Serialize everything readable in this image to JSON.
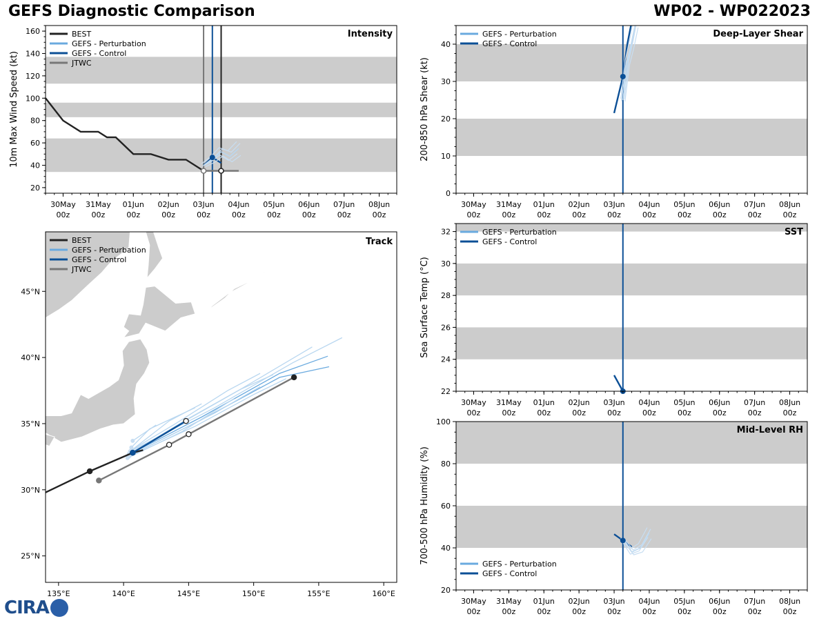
{
  "header": {
    "title_left": "GEFS Diagnostic Comparison",
    "title_right": "WP02 - WP022023"
  },
  "logo": {
    "text": "CIRA"
  },
  "colors": {
    "best": "#222222",
    "perturbation": "#6aaadf",
    "control": "#0b4f96",
    "jtwc": "#777777",
    "shade": "#cccccc",
    "land": "#cccccc"
  },
  "time_ticks": [
    [
      "30May",
      "00z"
    ],
    [
      "31May",
      "00z"
    ],
    [
      "01Jun",
      "00z"
    ],
    [
      "02Jun",
      "00z"
    ],
    [
      "03Jun",
      "00z"
    ],
    [
      "04Jun",
      "00z"
    ],
    [
      "05Jun",
      "00z"
    ],
    [
      "06Jun",
      "00z"
    ],
    [
      "07Jun",
      "00z"
    ],
    [
      "08Jun",
      "00z"
    ]
  ],
  "legend_labels": {
    "best": "BEST",
    "perturbation": "GEFS - Perturbation",
    "control": "GEFS - Control",
    "jtwc": "JTWC"
  },
  "chart_data": [
    {
      "id": "intensity",
      "type": "line",
      "title": "Intensity",
      "ylabel": "10m Max Wind Speed (kt)",
      "ylim": [
        15,
        165
      ],
      "yticks": [
        20,
        40,
        60,
        80,
        100,
        120,
        140,
        160
      ],
      "xlim_days": [
        -0.5,
        9.5
      ],
      "shaded_bands": [
        [
          34,
          64
        ],
        [
          83,
          96
        ],
        [
          113,
          137
        ]
      ],
      "vlines_days": [
        4.0,
        4.25,
        4.5
      ],
      "series": [
        {
          "name": "BEST",
          "x_days": [
            -0.5,
            0,
            0.5,
            1,
            1.25,
            1.5,
            2,
            2.5,
            3,
            3.5,
            4
          ],
          "y": [
            100,
            80,
            70,
            70,
            65,
            65,
            50,
            50,
            45,
            45,
            35
          ]
        },
        {
          "name": "JTWC",
          "x_days": [
            4.0,
            4.5,
            5.0
          ],
          "y": [
            35,
            35,
            35
          ]
        },
        {
          "name": "GEFS - Control",
          "x_days": [
            4.0,
            4.25,
            4.5
          ],
          "y": [
            40,
            47,
            42
          ]
        },
        {
          "name": "GEFS - Perturbation",
          "x_days": [
            4.0,
            4.25,
            4.5,
            4.75,
            5.0
          ],
          "y": [
            40,
            45,
            52,
            48,
            55
          ]
        }
      ]
    },
    {
      "id": "shear",
      "type": "line",
      "title": "Deep-Layer Shear",
      "ylabel": "200-850 hPa Shear (kt)",
      "ylim": [
        0,
        45
      ],
      "yticks": [
        0,
        10,
        20,
        30,
        40
      ],
      "xlim_days": [
        -0.5,
        9.5
      ],
      "shaded_bands": [
        [
          10,
          20
        ],
        [
          30,
          40
        ]
      ],
      "vlines_days": [
        4.25
      ],
      "series": [
        {
          "name": "GEFS - Control",
          "x_days": [
            4.0,
            4.25,
            4.375,
            4.5
          ],
          "y": [
            21.5,
            31.3,
            40,
            46
          ]
        },
        {
          "name": "GEFS - Perturbation",
          "x_days": [
            4.25,
            4.375,
            4.5,
            4.625
          ],
          "y": [
            25,
            35,
            40,
            46
          ]
        }
      ]
    },
    {
      "id": "sst",
      "type": "line",
      "title": "SST",
      "ylabel": "Sea Surface Temp (°C)",
      "ylim": [
        22,
        32.5
      ],
      "yticks": [
        22,
        24,
        26,
        28,
        30,
        32
      ],
      "xlim_days": [
        -0.5,
        9.5
      ],
      "shaded_bands": [
        [
          24,
          26
        ],
        [
          28,
          30
        ],
        [
          32,
          32.5
        ]
      ],
      "vlines_days": [
        4.25
      ],
      "series": [
        {
          "name": "GEFS - Control",
          "x_days": [
            4.0,
            4.25
          ],
          "y": [
            23.0,
            22.0
          ]
        }
      ]
    },
    {
      "id": "rh",
      "type": "line",
      "title": "Mid-Level RH",
      "ylabel": "700-500 hPa Humidity (%)",
      "ylim": [
        20,
        100
      ],
      "yticks": [
        20,
        40,
        60,
        80,
        100
      ],
      "xlim_days": [
        -0.5,
        9.5
      ],
      "shaded_bands": [
        [
          40,
          60
        ],
        [
          80,
          100
        ]
      ],
      "vlines_days": [
        4.25
      ],
      "series": [
        {
          "name": "GEFS - Control",
          "x_days": [
            4.0,
            4.25,
            4.5
          ],
          "y": [
            46.5,
            43.5,
            40.5
          ]
        },
        {
          "name": "GEFS - Perturbation",
          "x_days": [
            4.25,
            4.5,
            4.75,
            5.0
          ],
          "y": [
            44,
            38,
            40,
            47
          ]
        }
      ]
    },
    {
      "id": "track",
      "type": "scatter",
      "title": "Track",
      "xlim_lon": [
        134,
        161
      ],
      "ylim_lat": [
        23,
        49.5
      ],
      "xticks": [
        135,
        140,
        145,
        150,
        155,
        160
      ],
      "xtick_labels": [
        "135°E",
        "140°E",
        "145°E",
        "150°E",
        "155°E",
        "160°E"
      ],
      "yticks": [
        25,
        30,
        35,
        40,
        45
      ],
      "ytick_labels": [
        "25°N",
        "30°N",
        "35°N",
        "40°N",
        "45°N"
      ],
      "series": [
        {
          "name": "BEST",
          "lon": [
            134.0,
            137.4,
            140.7,
            141.5
          ],
          "lat": [
            29.8,
            31.4,
            32.8,
            33.0
          ],
          "markers": [
            [
              137.4,
              31.4
            ],
            [
              140.7,
              32.8
            ]
          ]
        },
        {
          "name": "JTWC",
          "lon": [
            138.1,
            143.5,
            145.0,
            153.1
          ],
          "lat": [
            30.7,
            33.4,
            34.2,
            38.5
          ],
          "markers": [
            [
              138.1,
              30.7
            ],
            [
              143.5,
              33.4
            ],
            [
              145.0,
              34.2
            ],
            [
              153.1,
              38.5
            ]
          ]
        },
        {
          "name": "GEFS - Control",
          "lon": [
            140.7,
            144.8
          ],
          "lat": [
            32.8,
            35.2
          ],
          "markers": [
            [
              140.7,
              32.8
            ],
            [
              144.8,
              35.2
            ]
          ]
        },
        {
          "name": "GEFS - Perturbation",
          "tracks": [
            [
              [
                140.5,
                32.7
              ],
              [
                146,
                35.5
              ],
              [
                152,
                38.8
              ],
              [
                155.7,
                40.1
              ]
            ],
            [
              [
                140.5,
                32.6
              ],
              [
                146,
                35.3
              ],
              [
                152,
                38.5
              ],
              [
                155.8,
                39.3
              ]
            ],
            [
              [
                140.5,
                32.9
              ],
              [
                147,
                36.2
              ],
              [
                153,
                39.6
              ],
              [
                156.8,
                41.5
              ]
            ],
            [
              [
                140.6,
                32.8
              ],
              [
                145,
                35.4
              ],
              [
                149,
                37.6
              ],
              [
                151.5,
                38.7
              ]
            ],
            [
              [
                140.4,
                32.5
              ],
              [
                145.5,
                34.8
              ],
              [
                150,
                37.2
              ],
              [
                152.5,
                38.4
              ]
            ],
            [
              [
                140.6,
                33.0
              ],
              [
                144,
                35.0
              ],
              [
                148,
                37.5
              ],
              [
                150.5,
                38.8
              ]
            ],
            [
              [
                140.5,
                32.9
              ],
              [
                143.5,
                35.2
              ],
              [
                146,
                36.5
              ]
            ],
            [
              [
                140.4,
                32.7
              ],
              [
                144,
                34.8
              ],
              [
                149,
                37.6
              ],
              [
                154.5,
                40.8
              ]
            ],
            [
              [
                140.6,
                33.2
              ],
              [
                142,
                34.6
              ],
              [
                145.5,
                36.2
              ]
            ],
            [
              [
                140.5,
                32.6
              ],
              [
                147,
                35.8
              ],
              [
                150.5,
                37.8
              ]
            ],
            [
              [
                140.3,
                32.4
              ],
              [
                144.5,
                34.4
              ],
              [
                148.5,
                36.9
              ]
            ],
            [
              [
                140.7,
                33.7
              ],
              [
                142.5,
                34.9
              ]
            ]
          ]
        }
      ]
    }
  ]
}
